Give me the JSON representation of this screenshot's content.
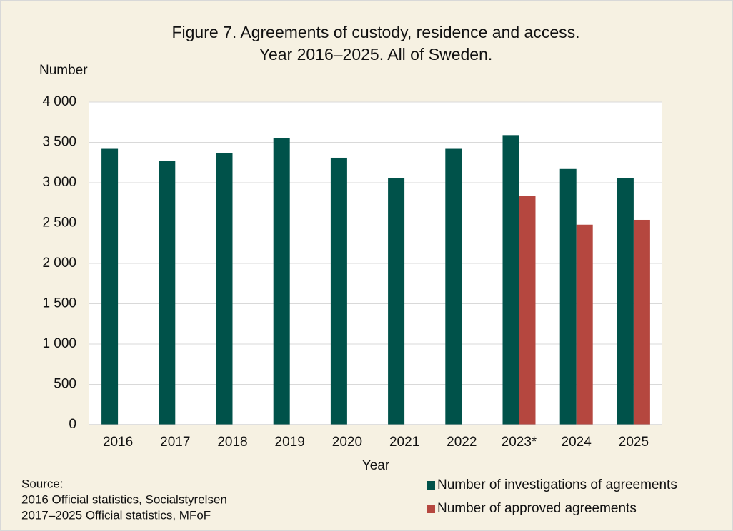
{
  "chart_data": {
    "type": "bar",
    "title": [
      "Figure 7. Agreements of custody, residence and access.",
      "Year  2016–2025. All of Sweden."
    ],
    "y_label": "Number",
    "x_label": "Year",
    "categories": [
      "2016",
      "2017",
      "2018",
      "2019",
      "2020",
      "2021",
      "2022",
      "2023*",
      "2024",
      "2025"
    ],
    "series": [
      {
        "name": "Number of investigations of agreements",
        "color": "#00524a",
        "values": [
          3420,
          3270,
          3370,
          3550,
          3310,
          3060,
          3420,
          3590,
          3170,
          3060
        ]
      },
      {
        "name": "Number of approved agreements",
        "color": "#b5473f",
        "values": [
          null,
          null,
          null,
          null,
          null,
          null,
          null,
          2840,
          2480,
          2540
        ]
      }
    ],
    "ylim": [
      0,
      4000
    ],
    "yticks": [
      0,
      500,
      {
        "value": 1000,
        "label": "1 000"
      },
      {
        "value": 1500,
        "label": "1 500"
      },
      {
        "value": 2000,
        "label": "2 000"
      },
      {
        "value": 2500,
        "label": "2 500"
      },
      {
        "value": 3000,
        "label": "3 000"
      },
      {
        "value": 3500,
        "label": "3 500"
      },
      {
        "value": 4000,
        "label": "4 000"
      }
    ],
    "grid": true,
    "source": [
      "Source:",
      "2016 Official statistics, Socialstyrelsen",
      "2017–2025 Official statistics, MFoF"
    ]
  }
}
